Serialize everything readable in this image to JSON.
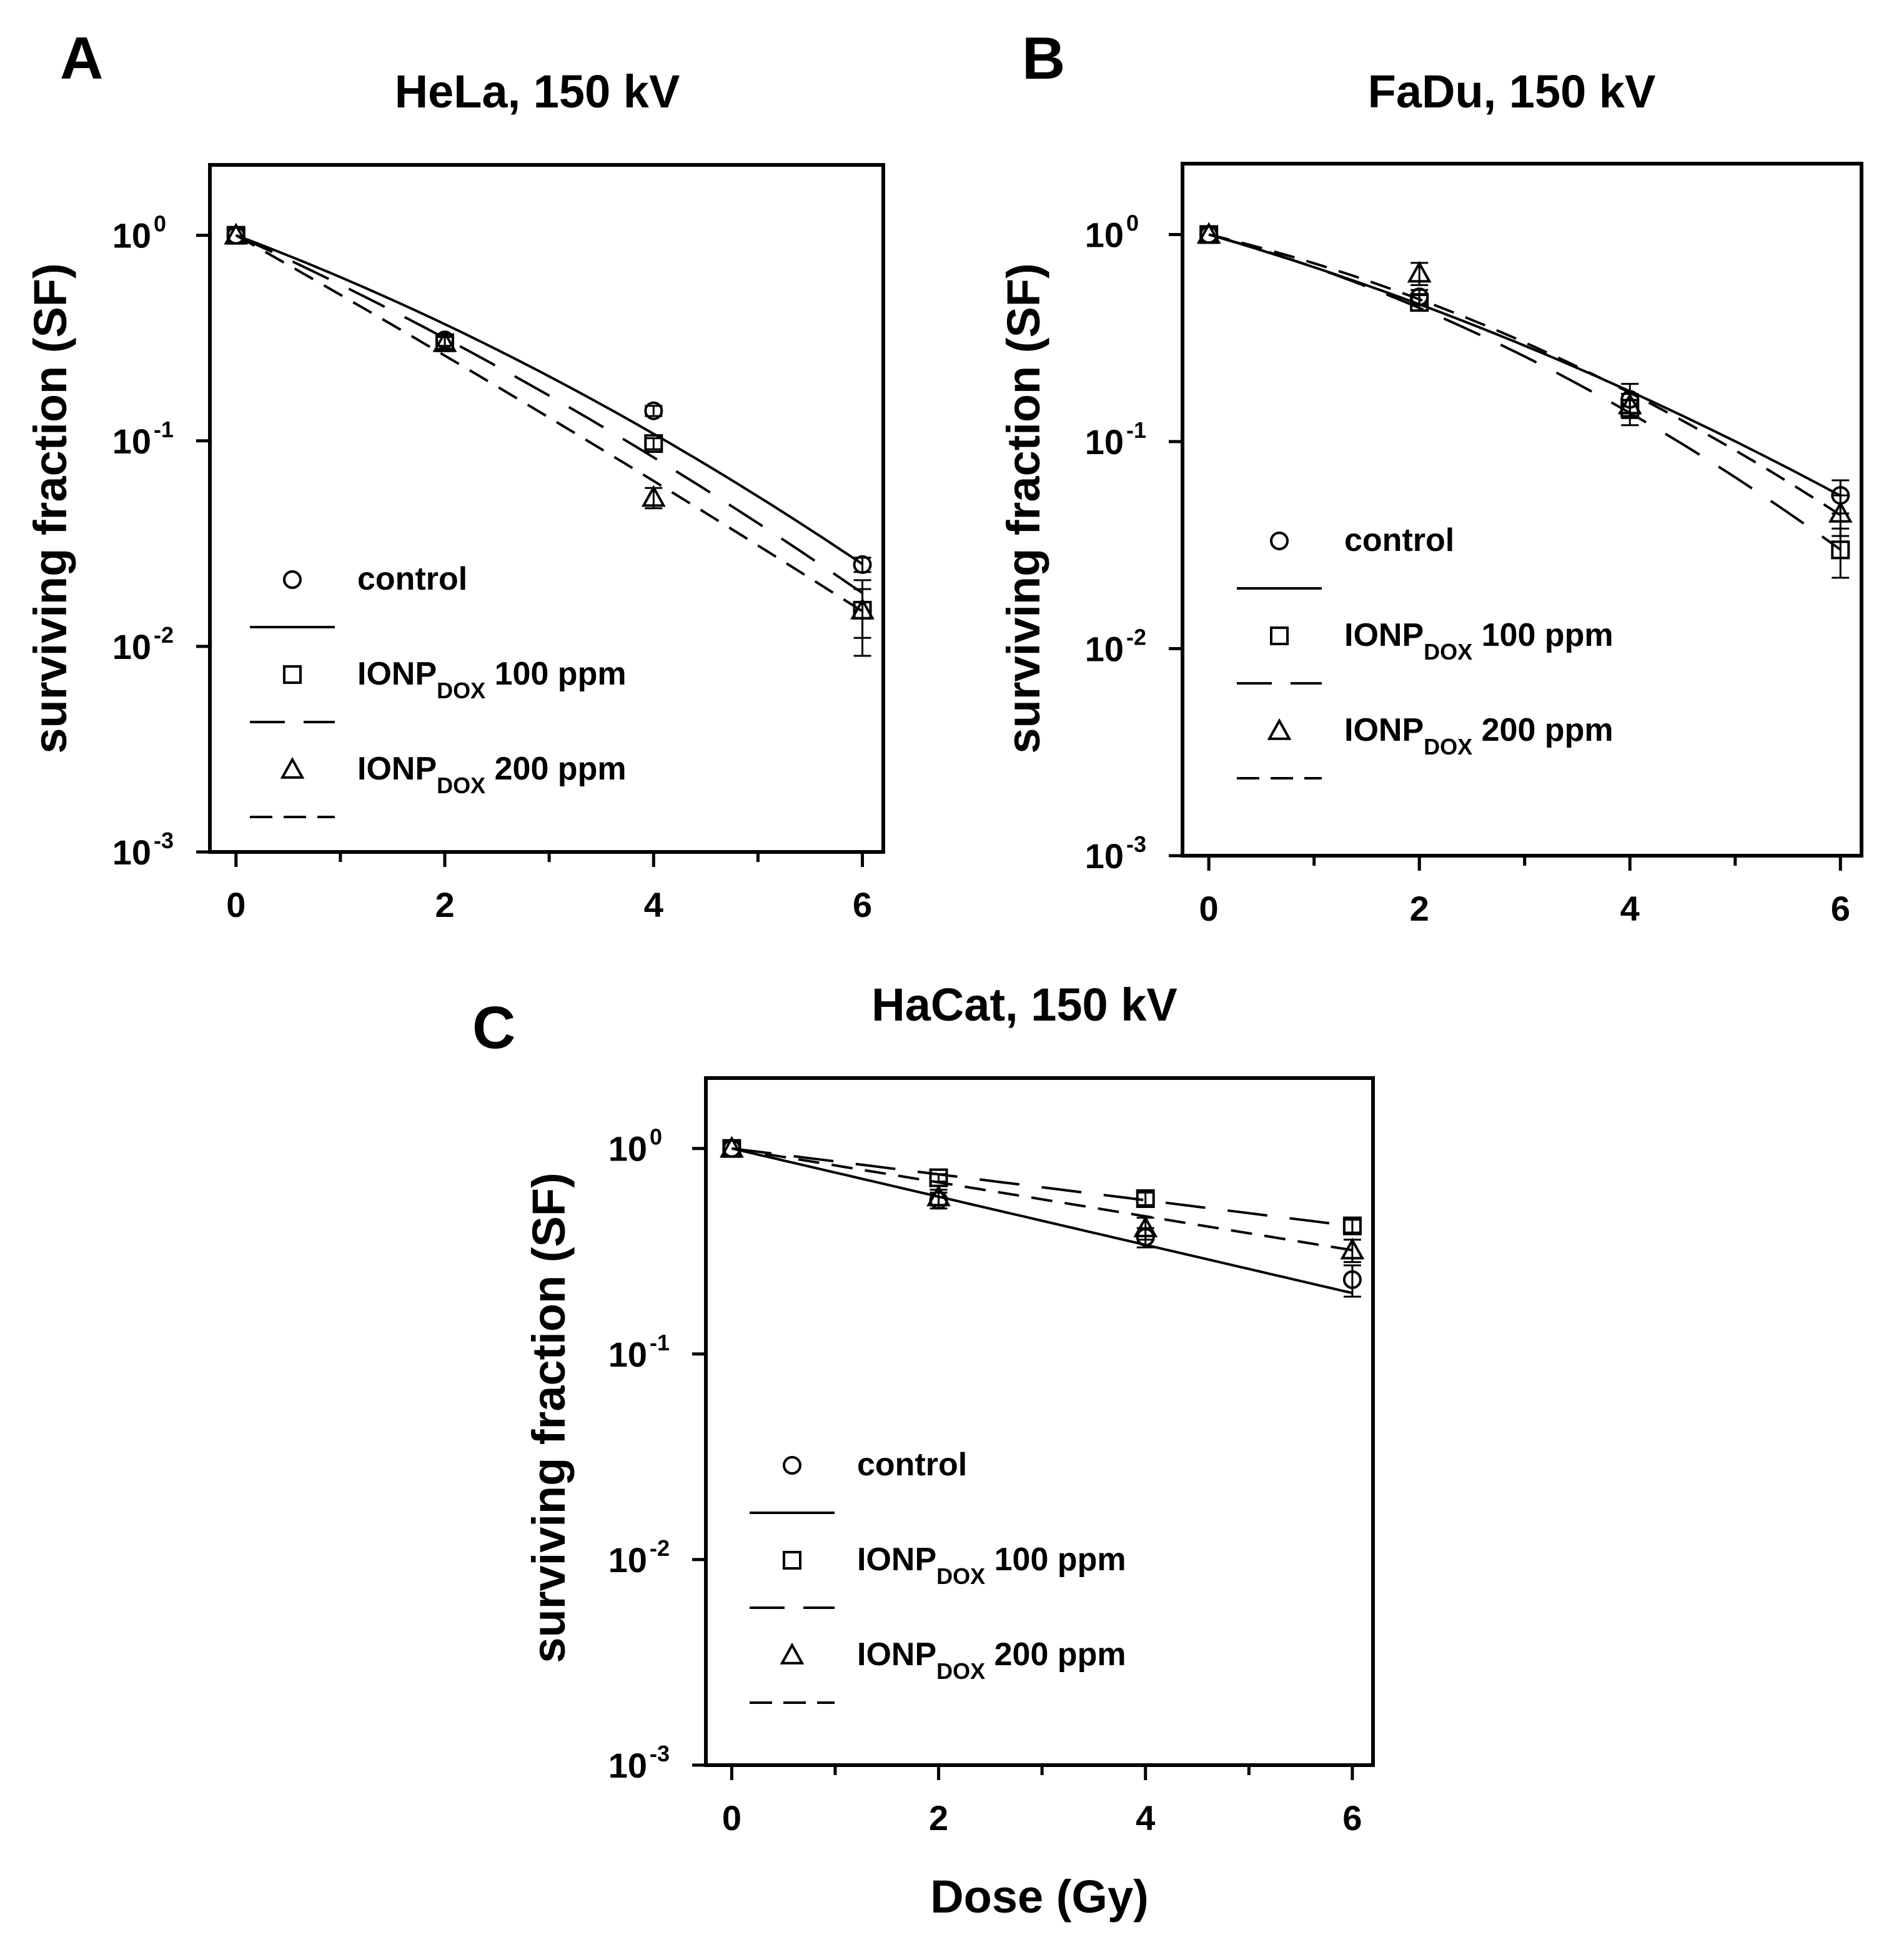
{
  "chart_data": [
    {
      "type": "line",
      "panel_label": "A",
      "title": "HeLa, 150 kV",
      "xlabel": "",
      "ylabel": "surviving fraction (SF)",
      "yscale": "log",
      "xlim": [
        -0.25,
        6.2
      ],
      "ylim": [
        0.001,
        2.2
      ],
      "x_ticks": [
        "0",
        "2",
        "4",
        "6"
      ],
      "y_ticks": [
        {
          "value": 1,
          "base": "10",
          "exp": "0"
        },
        {
          "value": 0.1,
          "base": "10",
          "exp": "-1"
        },
        {
          "value": 0.01,
          "base": "10",
          "exp": "-2"
        },
        {
          "value": 0.001,
          "base": "10",
          "exp": "-3"
        }
      ],
      "legend": {
        "position": "bottom-left"
      },
      "series": [
        {
          "name": "control",
          "label_main": "control",
          "label_sub": "",
          "label_rest": "",
          "marker": "circle",
          "line": "solid",
          "x": [
            0,
            2,
            4,
            6
          ],
          "y": [
            1.0,
            0.31,
            0.14,
            0.025
          ],
          "err": [
            0,
            0.02,
            0.008,
            0.002
          ],
          "fit_alpha": 0.44,
          "fit_beta": 0.029
        },
        {
          "name": "IONP DOX 100 ppm",
          "label_main": "IONP",
          "label_sub": "DOX",
          "label_rest": " 100 ppm",
          "marker": "square",
          "line": "longdash",
          "x": [
            0,
            2,
            4,
            6
          ],
          "y": [
            1.0,
            0.3,
            0.097,
            0.015
          ],
          "err": [
            0,
            0.02,
            0.006,
            0.004
          ],
          "fit_alpha": 0.53,
          "fit_beta": 0.023
        },
        {
          "name": "IONP DOX 200 ppm",
          "label_main": "IONP",
          "label_sub": "DOX",
          "label_rest": " 200 ppm",
          "marker": "triangle",
          "line": "shortdash",
          "x": [
            0,
            2,
            4,
            6
          ],
          "y": [
            1.0,
            0.3,
            0.053,
            0.015
          ],
          "err": [
            0,
            0.02,
            0.006,
            0.006
          ],
          "fit_alpha": 0.66,
          "fit_beta": 0.007
        }
      ]
    },
    {
      "type": "line",
      "panel_label": "B",
      "title": "FaDu, 150 kV",
      "xlabel": "",
      "ylabel": "surviving fraction (SF)",
      "yscale": "log",
      "xlim": [
        -0.25,
        6.2
      ],
      "ylim": [
        0.001,
        2.2
      ],
      "x_ticks": [
        "0",
        "2",
        "4",
        "6"
      ],
      "y_ticks": [
        {
          "value": 1,
          "base": "10",
          "exp": "0"
        },
        {
          "value": 0.1,
          "base": "10",
          "exp": "-1"
        },
        {
          "value": 0.01,
          "base": "10",
          "exp": "-2"
        },
        {
          "value": 0.001,
          "base": "10",
          "exp": "-3"
        }
      ],
      "legend": {
        "position": "bottom-left"
      },
      "series": [
        {
          "name": "control",
          "label_main": "control",
          "label_sub": "",
          "label_rest": "",
          "marker": "circle",
          "line": "solid",
          "x": [
            0,
            2,
            4,
            6
          ],
          "y": [
            1.0,
            0.5,
            0.16,
            0.055
          ],
          "err": [
            0,
            0.04,
            0.03,
            0.01
          ],
          "fit_alpha": 0.34,
          "fit_beta": 0.024
        },
        {
          "name": "IONP DOX 100 ppm",
          "label_main": "IONP",
          "label_sub": "DOX",
          "label_rest": " 100 ppm",
          "marker": "square",
          "line": "longdash",
          "x": [
            0,
            2,
            4,
            6
          ],
          "y": [
            1.0,
            0.47,
            0.145,
            0.03
          ],
          "err": [
            0,
            0.04,
            0.025,
            0.008
          ],
          "fit_alpha": 0.32,
          "fit_beta": 0.044
        },
        {
          "name": "IONP DOX 200 ppm",
          "label_main": "IONP",
          "label_sub": "DOX",
          "label_rest": " 200 ppm",
          "marker": "triangle",
          "line": "shortdash",
          "x": [
            0,
            2,
            4,
            6
          ],
          "y": [
            1.0,
            0.65,
            0.15,
            0.045
          ],
          "err": [
            0,
            0.08,
            0.02,
            0.01
          ],
          "fit_alpha": 0.28,
          "fit_beta": 0.04
        }
      ]
    },
    {
      "type": "line",
      "panel_label": "C",
      "title": "HaCat, 150 kV",
      "xlabel": "Dose (Gy)",
      "ylabel": "surviving fraction (SF)",
      "yscale": "log",
      "xlim": [
        -0.25,
        6.2
      ],
      "ylim": [
        0.001,
        2.2
      ],
      "x_ticks": [
        "0",
        "2",
        "4",
        "6"
      ],
      "y_ticks": [
        {
          "value": 1,
          "base": "10",
          "exp": "0"
        },
        {
          "value": 0.1,
          "base": "10",
          "exp": "-1"
        },
        {
          "value": 0.01,
          "base": "10",
          "exp": "-2"
        },
        {
          "value": 0.001,
          "base": "10",
          "exp": "-3"
        }
      ],
      "legend": {
        "position": "bottom-left"
      },
      "series": [
        {
          "name": "control",
          "label_main": "control",
          "label_sub": "",
          "label_rest": "",
          "marker": "circle",
          "line": "solid",
          "x": [
            0,
            2,
            4,
            6
          ],
          "y": [
            1.0,
            0.56,
            0.37,
            0.23
          ],
          "err": [
            0,
            0.05,
            0.04,
            0.04
          ],
          "fit_alpha": 0.27,
          "fit_beta": 0.0
        },
        {
          "name": "IONP DOX 100 ppm",
          "label_main": "IONP",
          "label_sub": "DOX",
          "label_rest": " 100 ppm",
          "marker": "square",
          "line": "longdash",
          "x": [
            0,
            2,
            4,
            6
          ],
          "y": [
            1.0,
            0.72,
            0.57,
            0.42
          ],
          "err": [
            0,
            0.03,
            0.04,
            0.03
          ],
          "fit_alpha": 0.145,
          "fit_beta": 0.0
        },
        {
          "name": "IONP DOX 200 ppm",
          "label_main": "IONP",
          "label_sub": "DOX",
          "label_rest": " 200 ppm",
          "marker": "triangle",
          "line": "shortdash",
          "x": [
            0,
            2,
            4,
            6
          ],
          "y": [
            1.0,
            0.58,
            0.41,
            0.32
          ],
          "err": [
            0,
            0.05,
            0.05,
            0.04
          ],
          "fit_alpha": 0.19,
          "fit_beta": 0.0
        }
      ]
    }
  ]
}
